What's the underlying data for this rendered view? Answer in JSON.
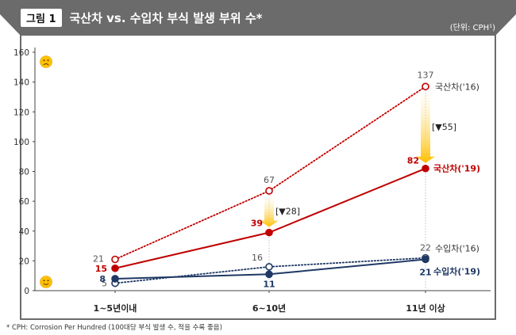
{
  "header": {
    "figure_label": "그림 1",
    "title": "국산차 vs. 수입차 부식 발생 부위 수*",
    "unit": "(단위: CPH¹)"
  },
  "footnote": "* CPH: Corrosion Per Hundred (100대당 부식 발생 수, 적을 수록 좋음)",
  "icons": {
    "top": "sad-face-icon",
    "bottom": "smiley-face-icon"
  },
  "colors": {
    "frame": "#6b6b6b",
    "domestic": "#c00000",
    "imported": "#1f3864",
    "arrow": "#ffc000",
    "grid": "#bfbfbf"
  },
  "chart_data": {
    "type": "line",
    "categories": [
      "1~5년이내",
      "6~10년",
      "11년 이상"
    ],
    "ylim": [
      0,
      160
    ],
    "yticks": [
      0,
      20,
      40,
      60,
      80,
      100,
      120,
      140,
      160
    ],
    "series": [
      {
        "name": "국산차('16)",
        "values": [
          21,
          67,
          137
        ],
        "style": "dotted",
        "marker": "hollow",
        "color": "#c00000"
      },
      {
        "name": "국산차('19)",
        "values": [
          15,
          39,
          82
        ],
        "style": "solid",
        "marker": "filled",
        "color": "#c00000"
      },
      {
        "name": "수입차('16)",
        "values": [
          5,
          16,
          22
        ],
        "style": "dotted",
        "marker": "hollow",
        "color": "#1f3864"
      },
      {
        "name": "수입차('19)",
        "values": [
          8,
          11,
          21
        ],
        "style": "solid",
        "marker": "filled",
        "color": "#1f3864"
      }
    ],
    "annotations": [
      {
        "text": "[▼28]",
        "category": "6~10년",
        "from": 67,
        "to": 39
      },
      {
        "text": "[▼55]",
        "category": "11년 이상",
        "from": 137,
        "to": 82
      }
    ]
  }
}
